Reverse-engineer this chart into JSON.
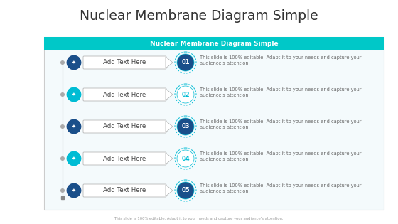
{
  "title": "Nuclear Membrane Diagram Simple",
  "subtitle": "Nuclear Membrane Diagram Simple",
  "footer": "This slide is 100% editable. Adapt it to your needs and capture your audience's attention.",
  "bg_color": "#f5f5f5",
  "header_bg": "#00c8c8",
  "header_text_color": "#ffffff",
  "row_items": [
    {
      "num": "01",
      "label": "Add Text Here",
      "desc": "This slide is 100% editable. Adapt it to your needs and capture your\naudience's attention.",
      "icon_color": "#1a4f8a",
      "num_style": "dark"
    },
    {
      "num": "02",
      "label": "Add Text Here",
      "desc": "This slide is 100% editable. Adapt it to your needs and capture your\naudience's attention.",
      "icon_color": "#00bcd4",
      "num_style": "light"
    },
    {
      "num": "03",
      "label": "Add Text Here",
      "desc": "This slide is 100% editable. Adapt it to your needs and capture your\naudience's attention.",
      "icon_color": "#1a4f8a",
      "num_style": "dark"
    },
    {
      "num": "04",
      "label": "Add Text Here",
      "desc": "This slide is 100% editable. Adapt it to your needs and capture your\naudience's attention.",
      "icon_color": "#00bcd4",
      "num_style": "light"
    },
    {
      "num": "05",
      "label": "Add Text Here",
      "desc": "This slide is 100% editable. Adapt it to your needs and capture your\naudience's attention.",
      "icon_color": "#1a4f8a",
      "num_style": "dark"
    }
  ],
  "dark_blue": "#1a4f8a",
  "light_blue": "#00bcd4",
  "text_gray": "#666666",
  "content_bg": "#f0f8ff"
}
